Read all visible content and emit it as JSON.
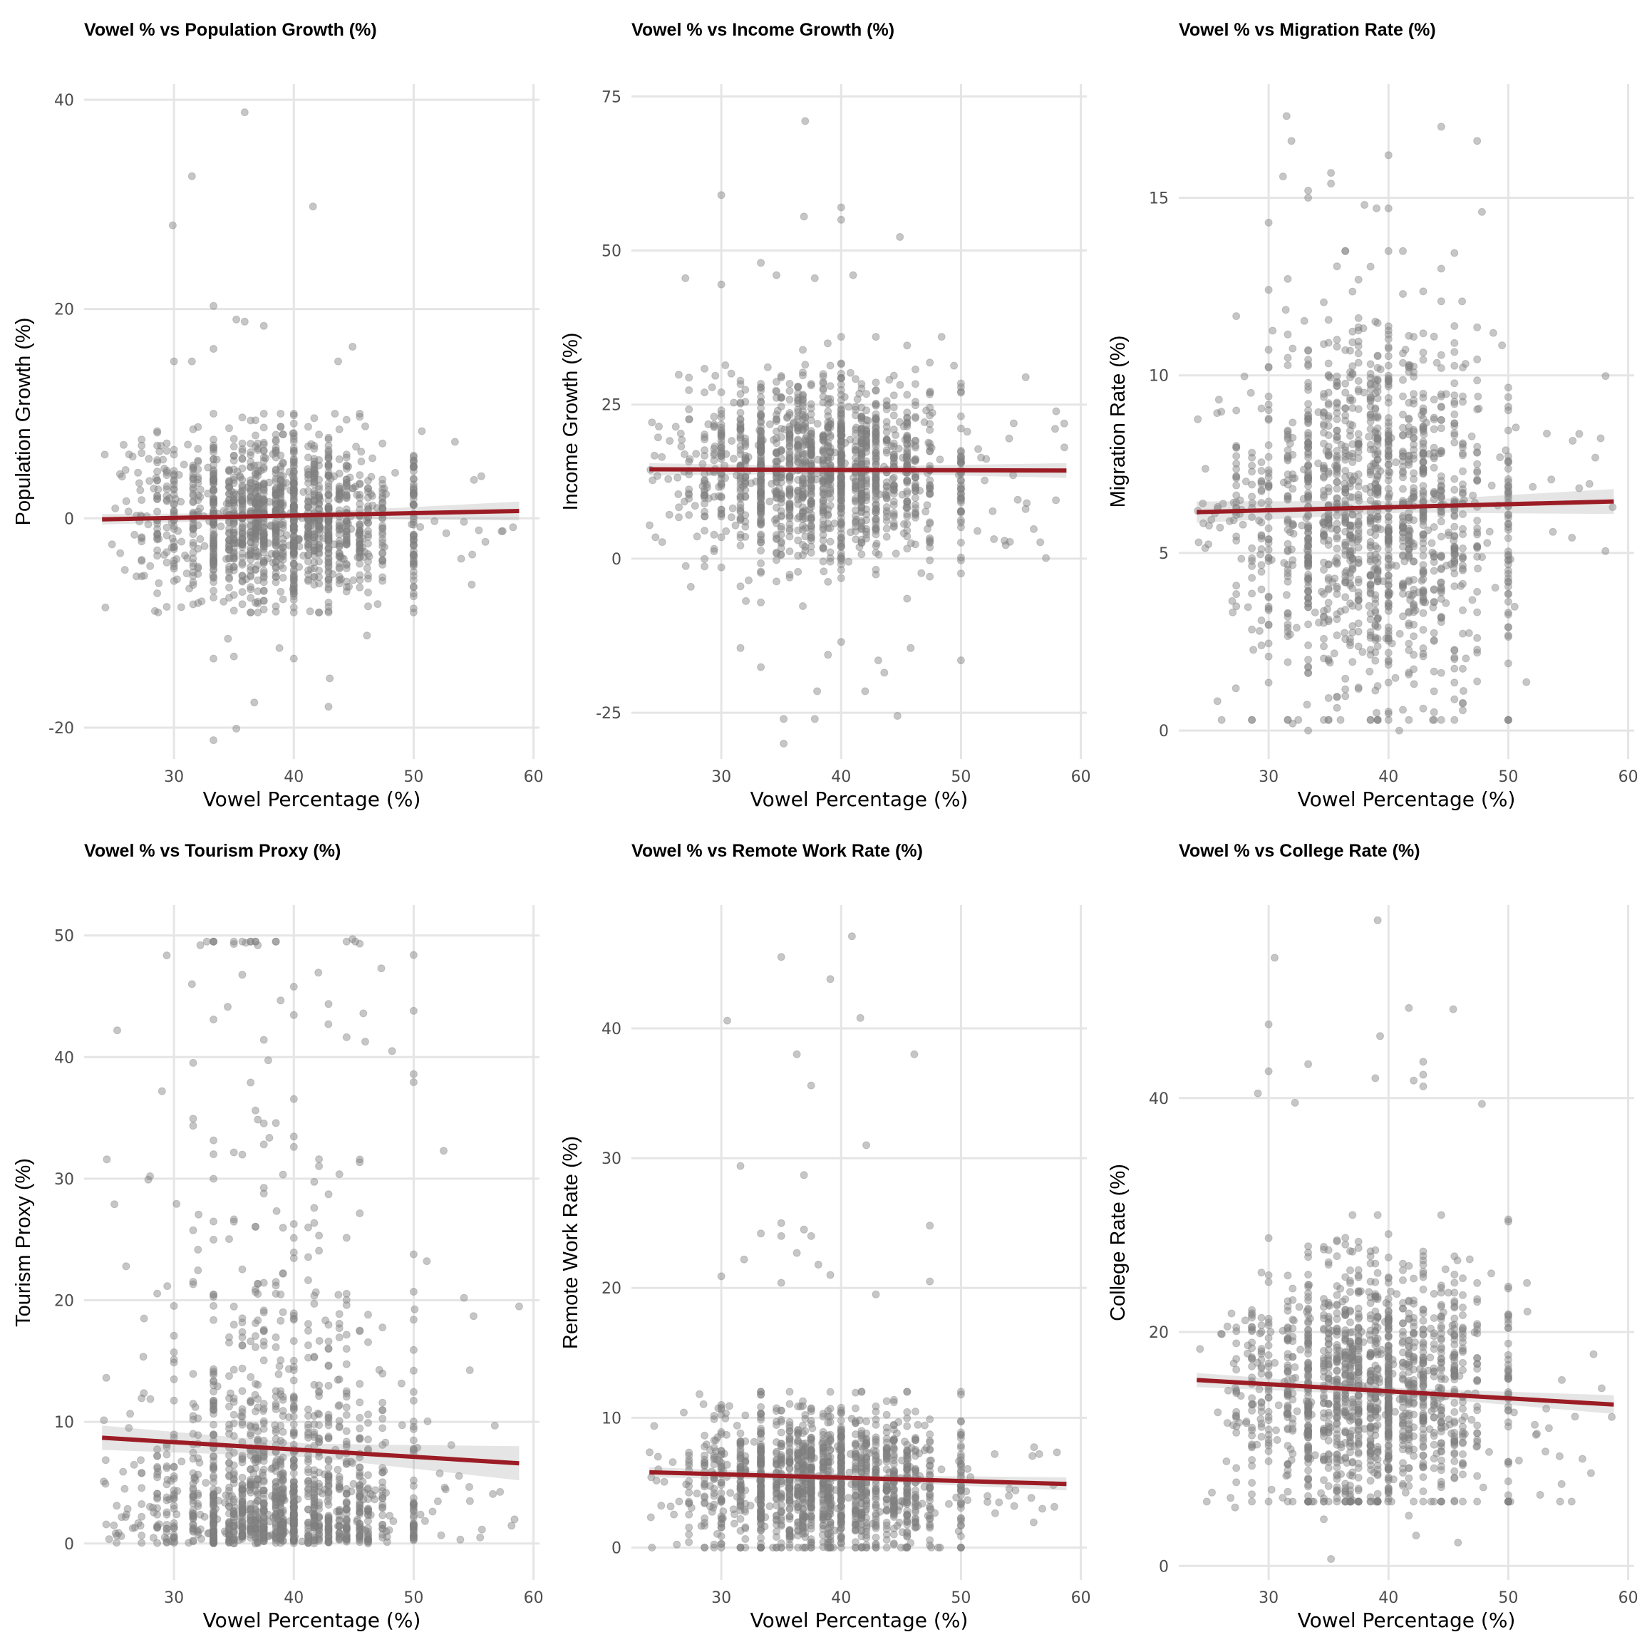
{
  "chart_data": [
    {
      "type": "scatter",
      "title": "Vowel % vs Population Growth (%)",
      "xlabel": "Vowel Percentage (%)",
      "ylabel": "Population Growth (%)",
      "xlim": [
        22.5,
        60.5
      ],
      "ylim": [
        -23,
        41.5
      ],
      "xticks": [
        30,
        40,
        50,
        60
      ],
      "yticks": [
        -20,
        0,
        20,
        40
      ],
      "grid": true,
      "trend": {
        "x": [
          24,
          58.8
        ],
        "y": [
          -0.1,
          0.7
        ],
        "ci_halfwidth": [
          0.5,
          0.9
        ],
        "color": "#9b1c24"
      },
      "distribution": {
        "center": 0.2,
        "spread": 4.2,
        "min": -9,
        "max": 10
      },
      "outliers": [
        [
          29.9,
          28.0
        ],
        [
          31.5,
          32.7
        ],
        [
          35.9,
          38.8
        ],
        [
          41.6,
          29.8
        ],
        [
          33.3,
          20.3
        ],
        [
          35.2,
          19.0
        ],
        [
          35.9,
          18.8
        ],
        [
          37.5,
          18.4
        ],
        [
          33.3,
          16.2
        ],
        [
          44.9,
          16.4
        ],
        [
          43.7,
          15.0
        ],
        [
          31.5,
          15.0
        ],
        [
          30.0,
          15.0
        ],
        [
          33.3,
          -13.4
        ],
        [
          34.5,
          -11.5
        ],
        [
          36.7,
          -17.6
        ],
        [
          35.2,
          -20.1
        ],
        [
          33.3,
          -21.2
        ],
        [
          43.0,
          -15.3
        ],
        [
          42.9,
          -18.0
        ],
        [
          40.0,
          -13.4
        ],
        [
          38.8,
          -12.4
        ],
        [
          46.1,
          -11.2
        ],
        [
          35.0,
          -13.2
        ]
      ]
    },
    {
      "type": "scatter",
      "title": "Vowel % vs Income Growth (%)",
      "xlabel": "Vowel Percentage (%)",
      "ylabel": "Income Growth (%)",
      "xlim": [
        22.5,
        60.5
      ],
      "ylim": [
        -32.5,
        77
      ],
      "xticks": [
        30,
        40,
        50,
        60
      ],
      "yticks": [
        -25,
        0,
        25,
        50,
        75
      ],
      "grid": true,
      "trend": {
        "x": [
          24,
          58.8
        ],
        "y": [
          14.5,
          14.3
        ],
        "ci_halfwidth": [
          1.0,
          1.2
        ],
        "color": "#9b1c24"
      },
      "distribution": {
        "center": 14.5,
        "spread": 7.5,
        "min": -10,
        "max": 36
      },
      "outliers": [
        [
          37.0,
          71.0
        ],
        [
          30.0,
          59.0
        ],
        [
          40.0,
          57.0
        ],
        [
          36.9,
          55.5
        ],
        [
          40.0,
          55.0
        ],
        [
          44.9,
          52.2
        ],
        [
          33.3,
          48.0
        ],
        [
          27.0,
          45.5
        ],
        [
          30.0,
          44.5
        ],
        [
          41.0,
          46.0
        ],
        [
          34.6,
          46.0
        ],
        [
          37.8,
          45.5
        ],
        [
          33.3,
          -17.6
        ],
        [
          40.0,
          -13.5
        ],
        [
          38.9,
          -15.6
        ],
        [
          42.0,
          -21.5
        ],
        [
          38.0,
          -21.5
        ],
        [
          35.2,
          -26.0
        ],
        [
          37.8,
          -26.0
        ],
        [
          35.2,
          -30.0
        ],
        [
          44.7,
          -25.5
        ],
        [
          43.1,
          -16.5
        ],
        [
          43.6,
          -18.5
        ],
        [
          50.0,
          -16.5
        ],
        [
          45.8,
          -14.5
        ],
        [
          31.6,
          -14.5
        ]
      ]
    },
    {
      "type": "scatter",
      "title": "Vowel % vs Migration Rate (%)",
      "xlabel": "Vowel Percentage (%)",
      "ylabel": "Migration Rate (%)",
      "xlim": [
        22.5,
        60.5
      ],
      "ylim": [
        -0.8,
        18.2
      ],
      "xticks": [
        30,
        40,
        50,
        60
      ],
      "yticks": [
        0,
        5,
        10,
        15
      ],
      "grid": true,
      "trend": {
        "x": [
          24,
          58.8
        ],
        "y": [
          6.15,
          6.45
        ],
        "ci_halfwidth": [
          0.3,
          0.35
        ],
        "color": "#9b1c24"
      },
      "distribution": {
        "center": 6.3,
        "spread": 2.6,
        "min": 0.3,
        "max": 13.5
      },
      "outliers": [
        [
          31.5,
          17.3
        ],
        [
          44.4,
          17.0
        ],
        [
          31.9,
          16.6
        ],
        [
          47.4,
          16.6
        ],
        [
          40.0,
          16.2
        ],
        [
          31.2,
          15.6
        ],
        [
          35.2,
          15.7
        ],
        [
          35.2,
          15.4
        ],
        [
          33.3,
          15.2
        ],
        [
          33.3,
          15.0
        ],
        [
          30.0,
          14.3
        ],
        [
          40.0,
          14.7
        ],
        [
          47.8,
          14.6
        ],
        [
          38.0,
          14.8
        ],
        [
          39.0,
          14.7
        ],
        [
          33.3,
          0.0
        ],
        [
          40.9,
          0.0
        ],
        [
          32.0,
          0.2
        ],
        [
          43.7,
          0.3
        ],
        [
          39.0,
          0.5
        ],
        [
          36.0,
          0.3
        ]
      ]
    },
    {
      "type": "scatter",
      "title": "Vowel % vs Tourism Proxy (%)",
      "xlabel": "Vowel Percentage (%)",
      "ylabel": "Tourism Proxy (%)",
      "xlim": [
        22.5,
        60.5
      ],
      "ylim": [
        -3,
        52.5
      ],
      "xticks": [
        30,
        40,
        50,
        60
      ],
      "yticks": [
        0,
        10,
        20,
        30,
        40,
        50
      ],
      "grid": true,
      "trend": {
        "x": [
          24,
          58.8
        ],
        "y": [
          8.7,
          6.6
        ],
        "ci_halfwidth": [
          1.0,
          1.4
        ],
        "color": "#9b1c24"
      },
      "distribution": {
        "center": 3.0,
        "spread": 9.0,
        "min": 0.0,
        "max": 49.5,
        "skew": "right"
      },
      "outliers": [
        [
          35.0,
          49.3
        ],
        [
          36.0,
          49.4
        ],
        [
          44.9,
          49.7
        ],
        [
          37.0,
          49.2
        ],
        [
          32.2,
          49.2
        ],
        [
          50.0,
          48.4
        ],
        [
          47.3,
          47.3
        ],
        [
          48.2,
          40.5
        ],
        [
          50.0,
          43.8
        ],
        [
          50.0,
          38.6
        ],
        [
          52.5,
          32.3
        ],
        [
          28.0,
          30.2
        ],
        [
          31.5,
          46.0
        ],
        [
          29.0,
          37.2
        ],
        [
          58.8,
          19.5
        ],
        [
          54.2,
          20.2
        ],
        [
          55.0,
          18.7
        ],
        [
          26.0,
          22.8
        ],
        [
          27.5,
          18.5
        ]
      ]
    },
    {
      "type": "scatter",
      "title": "Vowel % vs Remote Work Rate (%)",
      "xlabel": "Vowel Percentage (%)",
      "ylabel": "Remote Work Rate (%)",
      "xlim": [
        22.5,
        60.5
      ],
      "ylim": [
        -2.5,
        49.5
      ],
      "xticks": [
        30,
        40,
        50,
        60
      ],
      "yticks": [
        0,
        10,
        20,
        30,
        40
      ],
      "grid": true,
      "trend": {
        "x": [
          24,
          58.8
        ],
        "y": [
          5.8,
          4.9
        ],
        "ci_halfwidth": [
          0.4,
          0.5
        ],
        "color": "#9b1c24"
      },
      "distribution": {
        "center": 5.0,
        "spread": 2.8,
        "min": 0.0,
        "max": 12.0
      },
      "outliers": [
        [
          40.9,
          47.1
        ],
        [
          35.0,
          45.5
        ],
        [
          39.1,
          43.8
        ],
        [
          30.5,
          40.6
        ],
        [
          41.6,
          40.8
        ],
        [
          36.3,
          38.0
        ],
        [
          46.1,
          38.0
        ],
        [
          37.5,
          35.6
        ],
        [
          42.1,
          31.0
        ],
        [
          31.6,
          29.4
        ],
        [
          36.9,
          28.7
        ],
        [
          35.0,
          25.0
        ],
        [
          33.3,
          24.2
        ],
        [
          36.9,
          24.5
        ],
        [
          47.4,
          24.8
        ],
        [
          35.0,
          24.0
        ],
        [
          37.5,
          24.0
        ],
        [
          31.9,
          22.2
        ],
        [
          36.3,
          22.7
        ],
        [
          38.1,
          21.8
        ],
        [
          30.0,
          20.9
        ],
        [
          47.4,
          20.5
        ],
        [
          35.0,
          20.4
        ],
        [
          39.1,
          21.0
        ],
        [
          42.9,
          19.5
        ]
      ]
    },
    {
      "type": "scatter",
      "title": "Vowel % vs College Rate (%)",
      "xlabel": "Vowel Percentage (%)",
      "ylabel": "College Rate (%)",
      "xlim": [
        22.5,
        60.5
      ],
      "ylim": [
        -1.2,
        56.5
      ],
      "xticks": [
        30,
        40,
        50,
        60
      ],
      "yticks": [
        0,
        20,
        40
      ],
      "grid": true,
      "trend": {
        "x": [
          24,
          58.8
        ],
        "y": [
          15.9,
          13.8
        ],
        "ci_halfwidth": [
          0.6,
          0.8
        ],
        "color": "#9b1c24"
      },
      "distribution": {
        "center": 15.0,
        "spread": 5.5,
        "min": 5.5,
        "max": 30
      },
      "outliers": [
        [
          39.1,
          55.2
        ],
        [
          30.5,
          52.0
        ],
        [
          30.0,
          46.3
        ],
        [
          41.7,
          47.7
        ],
        [
          45.4,
          47.6
        ],
        [
          39.3,
          45.3
        ],
        [
          42.9,
          43.1
        ],
        [
          33.3,
          42.9
        ],
        [
          30.0,
          42.3
        ],
        [
          29.1,
          40.4
        ],
        [
          38.9,
          41.7
        ],
        [
          42.1,
          41.5
        ],
        [
          42.9,
          42.0
        ],
        [
          42.9,
          41.0
        ],
        [
          32.2,
          39.6
        ],
        [
          47.8,
          39.5
        ],
        [
          35.2,
          0.6
        ],
        [
          45.8,
          2.0
        ],
        [
          42.3,
          2.6
        ],
        [
          34.6,
          4.0
        ],
        [
          27.2,
          5.0
        ],
        [
          41.7,
          4.3
        ]
      ]
    }
  ]
}
